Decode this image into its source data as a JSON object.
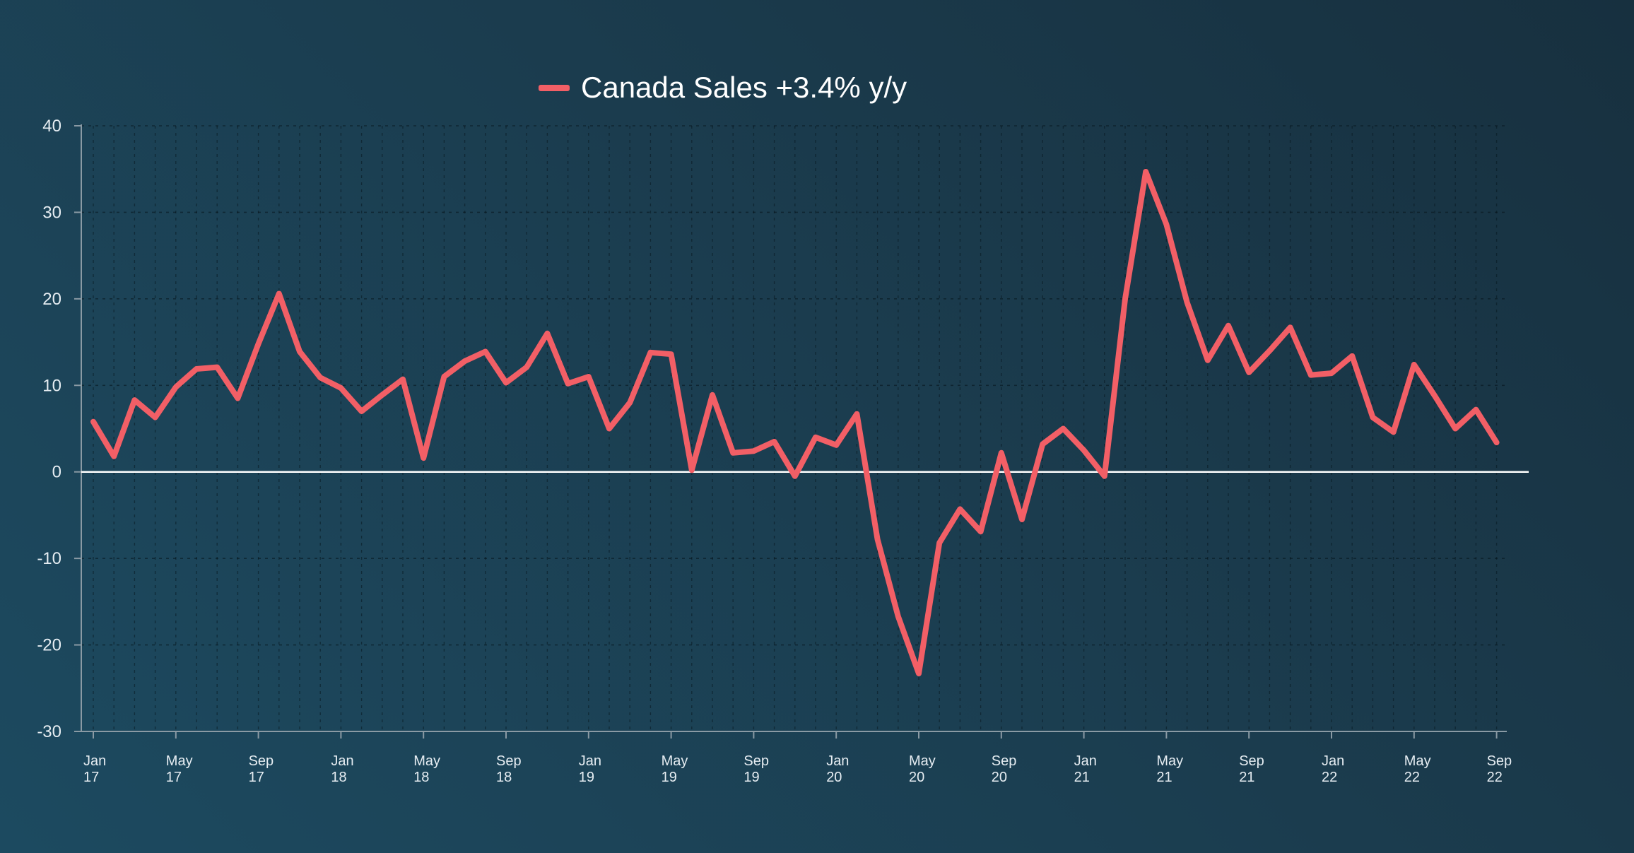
{
  "chart_data": {
    "type": "line",
    "title": "",
    "xlabel": "",
    "ylabel": "",
    "ylim": [
      -30,
      40
    ],
    "yticks": [
      -30,
      -20,
      -10,
      0,
      10,
      20,
      30,
      40
    ],
    "ytick_labels": [
      "-30",
      "-20",
      "-10",
      "0",
      "10",
      "20",
      "30",
      "40"
    ],
    "grid": true,
    "zero_line": true,
    "legend_position": "top-center",
    "x_tick_labels": [
      {
        "month": "Jan",
        "year": "17"
      },
      {
        "month": "May",
        "year": "17"
      },
      {
        "month": "Sep",
        "year": "17"
      },
      {
        "month": "Jan",
        "year": "18"
      },
      {
        "month": "May",
        "year": "18"
      },
      {
        "month": "Sep",
        "year": "18"
      },
      {
        "month": "Jan",
        "year": "19"
      },
      {
        "month": "May",
        "year": "19"
      },
      {
        "month": "Sep",
        "year": "19"
      },
      {
        "month": "Jan",
        "year": "20"
      },
      {
        "month": "May",
        "year": "20"
      },
      {
        "month": "Sep",
        "year": "20"
      },
      {
        "month": "Jan",
        "year": "21"
      },
      {
        "month": "May",
        "year": "21"
      },
      {
        "month": "Sep",
        "year": "21"
      },
      {
        "month": "Jan",
        "year": "22"
      },
      {
        "month": "May",
        "year": "22"
      },
      {
        "month": "Sep",
        "year": "22"
      }
    ],
    "x": [
      "2017-01",
      "2017-02",
      "2017-03",
      "2017-04",
      "2017-05",
      "2017-06",
      "2017-07",
      "2017-08",
      "2017-09",
      "2017-10",
      "2017-11",
      "2017-12",
      "2018-01",
      "2018-02",
      "2018-03",
      "2018-04",
      "2018-05",
      "2018-06",
      "2018-07",
      "2018-08",
      "2018-09",
      "2018-10",
      "2018-11",
      "2018-12",
      "2019-01",
      "2019-02",
      "2019-03",
      "2019-04",
      "2019-05",
      "2019-06",
      "2019-07",
      "2019-08",
      "2019-09",
      "2019-10",
      "2019-11",
      "2019-12",
      "2020-01",
      "2020-02",
      "2020-03",
      "2020-04",
      "2020-05",
      "2020-06",
      "2020-07",
      "2020-08",
      "2020-09",
      "2020-10",
      "2020-11",
      "2020-12",
      "2021-01",
      "2021-02",
      "2021-03",
      "2021-04",
      "2021-05",
      "2021-06",
      "2021-07",
      "2021-08",
      "2021-09",
      "2021-10",
      "2021-11",
      "2021-12",
      "2022-01",
      "2022-02",
      "2022-03",
      "2022-04",
      "2022-05",
      "2022-06",
      "2022-07",
      "2022-08",
      "2022-09"
    ],
    "series": [
      {
        "name": "Canada Sales +3.4% y/y",
        "color": "#f25f66",
        "values": [
          5.8,
          1.8,
          8.3,
          6.3,
          9.8,
          11.9,
          12.1,
          8.5,
          14.8,
          20.6,
          13.9,
          10.9,
          9.7,
          7.0,
          8.9,
          10.7,
          1.6,
          11.0,
          12.8,
          13.9,
          10.3,
          12.1,
          16.0,
          10.2,
          11.0,
          5.0,
          8.0,
          13.8,
          13.6,
          0.2,
          8.9,
          2.2,
          2.4,
          3.5,
          -0.5,
          4.0,
          3.1,
          6.7,
          -7.8,
          -16.7,
          -23.3,
          -8.2,
          -4.3,
          -6.9,
          2.2,
          -5.5,
          3.2,
          5.0,
          2.5,
          -0.5,
          20.0,
          34.7,
          28.6,
          19.6,
          12.9,
          16.9,
          11.5,
          14.0,
          16.7,
          11.2,
          11.4,
          13.4,
          6.3,
          4.6,
          12.4,
          8.8,
          5.0,
          7.2,
          3.4
        ]
      }
    ]
  }
}
